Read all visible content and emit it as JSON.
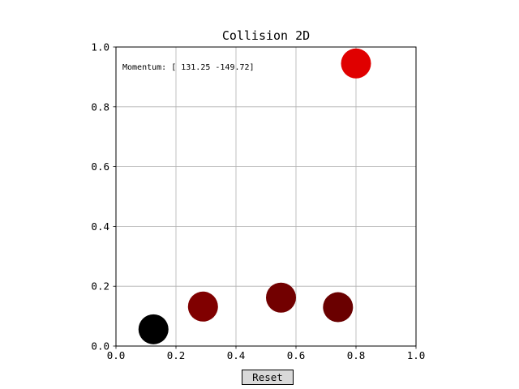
{
  "window": {
    "title": "Collision 2D"
  },
  "annotation": {
    "momentum_text": "Momentum: [ 131.25 -149.72]"
  },
  "controls": {
    "reset_label": "Reset"
  },
  "chart_data": {
    "type": "scatter",
    "title": "Collision 2D",
    "xlabel": "",
    "ylabel": "",
    "xlim": [
      0.0,
      1.0
    ],
    "ylim": [
      0.0,
      1.0
    ],
    "xticks": [
      "0.0",
      "0.2",
      "0.4",
      "0.6",
      "0.8",
      "1.0"
    ],
    "yticks": [
      "0.0",
      "0.2",
      "0.4",
      "0.6",
      "0.8",
      "1.0"
    ],
    "grid": true,
    "points": [
      {
        "x": 0.125,
        "y": 0.056,
        "color": "#000000"
      },
      {
        "x": 0.29,
        "y": 0.132,
        "color": "#800000"
      },
      {
        "x": 0.55,
        "y": 0.162,
        "color": "#720000"
      },
      {
        "x": 0.74,
        "y": 0.13,
        "color": "#6a0000"
      },
      {
        "x": 0.8,
        "y": 0.945,
        "color": "#e00000"
      }
    ]
  }
}
